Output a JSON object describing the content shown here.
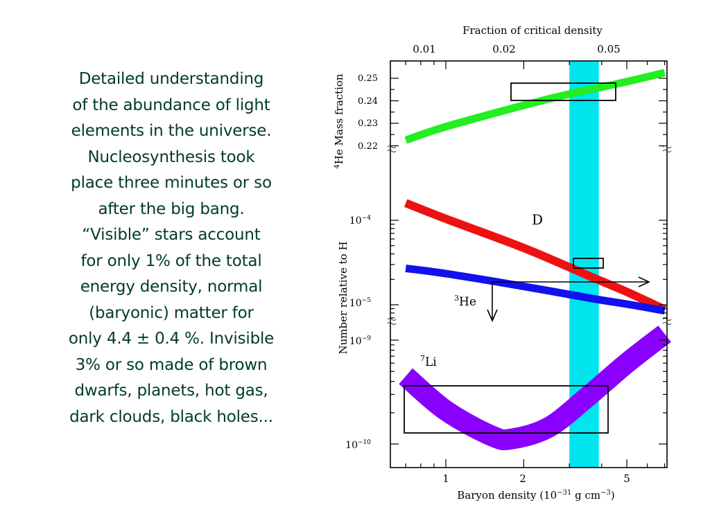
{
  "slide_text": {
    "lines": [
      "Detailed understanding",
      "of the abundance of light",
      "elements in the universe.",
      "Nucleosynthesis took",
      "place three minutes or so",
      "after the big bang.",
      "“Visible” stars account",
      "for only 1% of the total",
      "energy density, normal",
      "(baryonic) matter for",
      "only 4.4 ± 0.4 %. Invisible",
      "3% or so made of brown",
      "dwarfs, planets, hot gas,",
      "dark clouds, black holes..."
    ]
  },
  "chart_data": {
    "type": "line",
    "top_axis_label": "Fraction of critical density",
    "top_ticks": [
      "0.01",
      "0.02",
      "0.05"
    ],
    "xlabel_pre": "Baryon density (10",
    "xlabel_exp": "−31",
    "xlabel_mid": " g cm",
    "xlabel_exp2": "−3",
    "xlabel_post": ")",
    "x_ticks": [
      "1",
      "2",
      "5"
    ],
    "x_scale": "log",
    "helium_panel": {
      "ylabel_sup": "4",
      "ylabel": "He Mass fraction",
      "y_ticks": [
        "0.25",
        "0.24",
        "0.23",
        "0.22"
      ]
    },
    "abundance_panel": {
      "ylabel": "Number relative to H",
      "ticks_upper": [
        {
          "base": "10",
          "exp": "−4"
        },
        {
          "base": "10",
          "exp": "−5"
        }
      ],
      "ticks_lower": [
        {
          "base": "10",
          "exp": "−9"
        },
        {
          "base": "10",
          "exp": "−10"
        }
      ]
    },
    "series": [
      {
        "name": "4He",
        "color": "#22ee22",
        "x": [
          0.7,
          1,
          2,
          3,
          5,
          7
        ],
        "y": [
          0.2225,
          0.2285,
          0.238,
          0.243,
          0.2485,
          0.2525
        ]
      },
      {
        "name": "D",
        "label": "D",
        "color": "#ee1111",
        "x": [
          0.7,
          1,
          2,
          3.7,
          5,
          7
        ],
        "y": [
          0.00016,
          0.000104,
          4.7e-05,
          2.1e-05,
          1.42e-05,
          8.8e-06
        ]
      },
      {
        "name": "3He",
        "label_sup": "3",
        "label": "He",
        "color": "#1111ee",
        "x": [
          0.7,
          1,
          2,
          3.7,
          5,
          7
        ],
        "y": [
          2.7e-05,
          2.34e-05,
          1.65e-05,
          1.18e-05,
          1.02e-05,
          8.5e-06
        ]
      },
      {
        "name": "7Li",
        "label_sup": "7",
        "label": "Li",
        "color": "#8a00ff",
        "x": [
          0.7,
          1,
          1.5,
          1.8,
          2.5,
          3.5,
          5,
          7
        ],
        "y": [
          4.5e-10,
          2.1e-10,
          1.2e-10,
          1.12e-10,
          1.45e-10,
          2.8e-10,
          6e-10,
          1.15e-09
        ]
      }
    ],
    "observed_band": {
      "x": [
        3.0,
        3.9
      ],
      "color": "#00e5ee"
    },
    "grid": false,
    "legend": "none"
  }
}
